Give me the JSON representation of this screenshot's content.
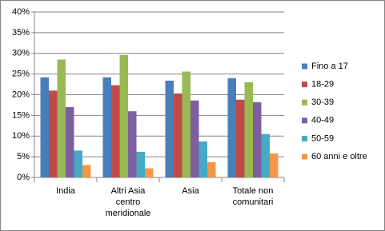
{
  "chart_data": {
    "type": "bar",
    "categories": [
      "India",
      "Altri Asia centro meridionale",
      "Asia",
      "Totale non comunitari"
    ],
    "series": [
      {
        "name": "Fino a 17",
        "color": "#4a7ebb",
        "values": [
          24.2,
          24.2,
          23.4,
          24.0
        ]
      },
      {
        "name": "18-29",
        "color": "#be4b48",
        "values": [
          21.0,
          22.3,
          20.3,
          18.8
        ]
      },
      {
        "name": "30-39",
        "color": "#98b954",
        "values": [
          28.5,
          29.6,
          25.6,
          23.0
        ]
      },
      {
        "name": "40-49",
        "color": "#7d5fa0",
        "values": [
          17.0,
          16.0,
          18.6,
          18.2
        ]
      },
      {
        "name": "50-59",
        "color": "#46aac5",
        "values": [
          6.5,
          6.2,
          8.7,
          10.5
        ]
      },
      {
        "name": "60 anni e oltre",
        "color": "#f79646",
        "values": [
          3.0,
          2.2,
          3.7,
          5.8
        ]
      }
    ],
    "ylim": [
      0,
      40
    ],
    "yticks": [
      {
        "value": 0,
        "label": "0%"
      },
      {
        "value": 5,
        "label": "5%"
      },
      {
        "value": 10,
        "label": "10%"
      },
      {
        "value": 15,
        "label": "15%"
      },
      {
        "value": 20,
        "label": "20%"
      },
      {
        "value": 25,
        "label": "25%"
      },
      {
        "value": 30,
        "label": "30%"
      },
      {
        "value": 35,
        "label": "35%"
      },
      {
        "value": 40,
        "label": "40%"
      }
    ],
    "grid": true
  }
}
